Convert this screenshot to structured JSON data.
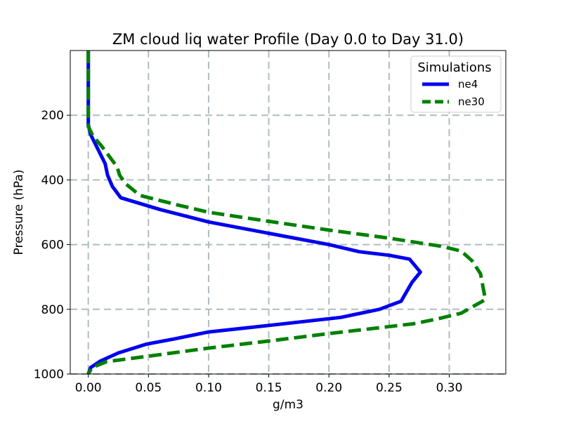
{
  "chart_data": {
    "type": "line",
    "title": "ZM cloud liq water Profile (Day 0.0 to Day 31.0)",
    "xlabel": "g/m3",
    "ylabel": "Pressure (hPa)",
    "xlim": [
      -0.015,
      0.347
    ],
    "ylim": [
      1000,
      0
    ],
    "y_axis_inverted": true,
    "xticks": [
      0.0,
      0.05,
      0.1,
      0.15,
      0.2,
      0.25,
      0.3
    ],
    "xtick_labels": [
      "0.00",
      "0.05",
      "0.10",
      "0.15",
      "0.20",
      "0.25",
      "0.30"
    ],
    "yticks": [
      200,
      400,
      600,
      800,
      1000
    ],
    "ytick_labels": [
      "200",
      "400",
      "600",
      "800",
      "1000"
    ],
    "grid": true,
    "legend": {
      "title": "Simulations",
      "placement": "top-right"
    },
    "series": [
      {
        "name": "ne4",
        "color": "#0000ee",
        "style": "solid",
        "points": [
          [
            0.0,
            0
          ],
          [
            0.0,
            50
          ],
          [
            0.0,
            100
          ],
          [
            0.0,
            150
          ],
          [
            0.0,
            200
          ],
          [
            0.0,
            230
          ],
          [
            0.002,
            260
          ],
          [
            0.006,
            290
          ],
          [
            0.01,
            320
          ],
          [
            0.014,
            350
          ],
          [
            0.016,
            385
          ],
          [
            0.02,
            420
          ],
          [
            0.027,
            455
          ],
          [
            0.06,
            492
          ],
          [
            0.1,
            530
          ],
          [
            0.15,
            565
          ],
          [
            0.2,
            600
          ],
          [
            0.225,
            622
          ],
          [
            0.25,
            633
          ],
          [
            0.267,
            645
          ],
          [
            0.276,
            685
          ],
          [
            0.269,
            717
          ],
          [
            0.26,
            775
          ],
          [
            0.242,
            800
          ],
          [
            0.21,
            825
          ],
          [
            0.15,
            850
          ],
          [
            0.1,
            870
          ],
          [
            0.071,
            892
          ],
          [
            0.048,
            908
          ],
          [
            0.025,
            935
          ],
          [
            0.01,
            960
          ],
          [
            0.002,
            980
          ],
          [
            0.0,
            1000
          ]
        ]
      },
      {
        "name": "ne30",
        "color": "#008000",
        "style": "dashed",
        "points": [
          [
            0.0,
            0
          ],
          [
            0.0,
            50
          ],
          [
            0.0,
            100
          ],
          [
            0.0,
            150
          ],
          [
            0.0,
            200
          ],
          [
            0.0,
            235
          ],
          [
            0.004,
            265
          ],
          [
            0.011,
            295
          ],
          [
            0.018,
            330
          ],
          [
            0.024,
            360
          ],
          [
            0.026,
            385
          ],
          [
            0.031,
            412
          ],
          [
            0.043,
            448
          ],
          [
            0.075,
            478
          ],
          [
            0.1,
            500
          ],
          [
            0.15,
            528
          ],
          [
            0.2,
            555
          ],
          [
            0.25,
            580
          ],
          [
            0.293,
            605
          ],
          [
            0.31,
            620
          ],
          [
            0.319,
            650
          ],
          [
            0.326,
            690
          ],
          [
            0.33,
            770
          ],
          [
            0.31,
            812
          ],
          [
            0.29,
            830
          ],
          [
            0.27,
            845
          ],
          [
            0.2,
            875
          ],
          [
            0.15,
            898
          ],
          [
            0.1,
            920
          ],
          [
            0.05,
            945
          ],
          [
            0.015,
            962
          ],
          [
            0.003,
            980
          ],
          [
            0.0,
            1000
          ]
        ]
      }
    ]
  }
}
